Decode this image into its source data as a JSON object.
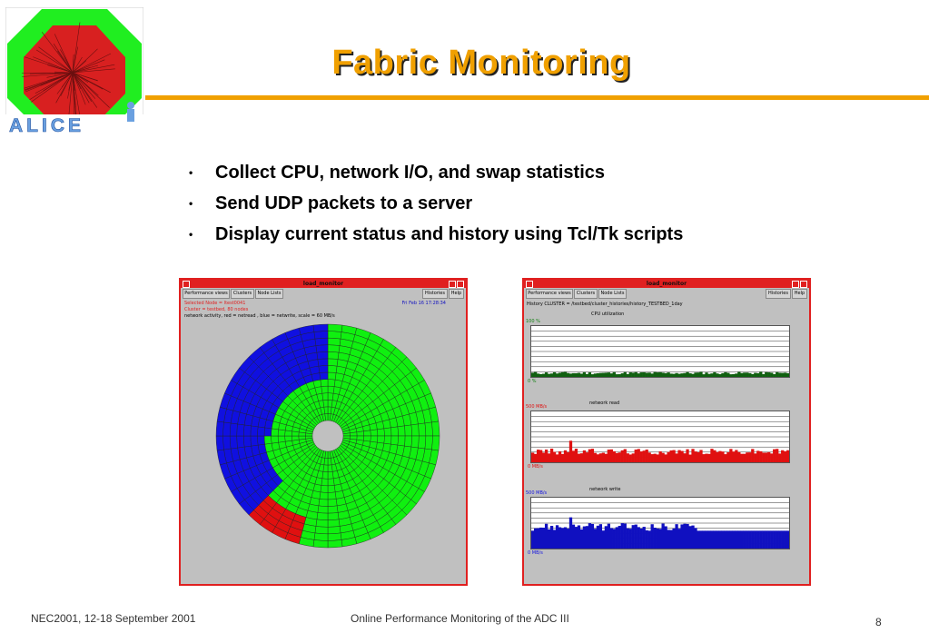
{
  "slide": {
    "title": "Fabric Monitoring",
    "bullets": [
      "Collect CPU, network I/O, and swap statistics",
      "Send UDP packets to a server",
      "Display current status and history using Tcl/Tk scripts"
    ],
    "bullet_symbol": "•",
    "logo_text": "ALICE",
    "footer_left": "NEC2001, 12-18 September 2001",
    "footer_center": "Online Performance Monitoring of the ADC III",
    "page_number": "8",
    "accent_color": "#f0a000"
  },
  "window_left": {
    "title": "load_monitor",
    "menu_left": [
      "Performance views",
      "Clusters",
      "Node Lists"
    ],
    "menu_right": [
      "Histories",
      "Help"
    ],
    "selected_node": "Selected Node = ltest0041",
    "cluster": "Cluster = testbed,  80 nodes",
    "timestamp": "Fri Feb 16 17:28:34",
    "legend": "network activity, red = netread   , blue = netwrite,   scale = 60 MB/s",
    "colors": {
      "netread": "#e01010",
      "netwrite": "#1010e0",
      "idle": "#10f010"
    }
  },
  "window_right": {
    "title": "load_monitor",
    "menu_left": [
      "Performance views",
      "Clusters",
      "Node Lists"
    ],
    "menu_right": [
      "Histories",
      "Help"
    ],
    "history_path": "History  CLUSTER = /testbed/cluster_histories/history_TESTBED_1day",
    "graphs": [
      {
        "title": "CPU utilization",
        "top_label": "100 %",
        "bottom_label": "0 %",
        "color": "#106010",
        "label_color": "#108010"
      },
      {
        "title": "network read",
        "top_label": "500 MB/s",
        "bottom_label": "0 MB/s",
        "color": "#e01010",
        "label_color": "#e01010"
      },
      {
        "title": "network write",
        "top_label": "500 MB/s",
        "bottom_label": "0 MB/s",
        "color": "#1010c0",
        "label_color": "#1010e0"
      }
    ]
  }
}
